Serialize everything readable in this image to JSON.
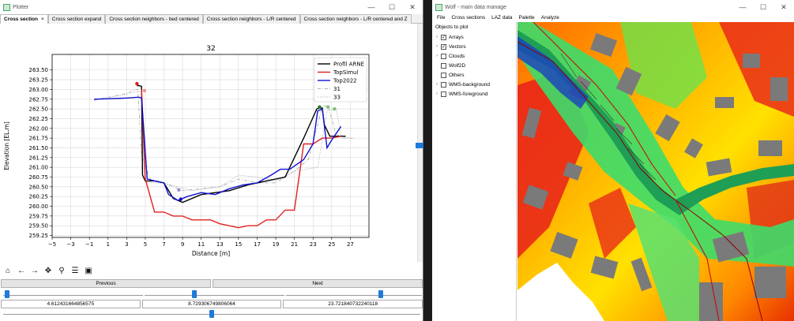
{
  "plotter": {
    "title": "Plotter",
    "tabs": [
      "Cross section",
      "Cross section expand",
      "Cross section neighbors - bed centered",
      "Cross section neighbors - L/R centered",
      "Cross section neighbors - L/R centered and Z"
    ],
    "tab_close": "×",
    "window_buttons": {
      "minimize": "—",
      "maximize": "☐",
      "close": "✕"
    },
    "toolbar_icons": [
      "home-icon",
      "back-arrow-icon",
      "forward-arrow-icon",
      "pan-icon",
      "zoom-icon",
      "configure-icon",
      "save-icon"
    ],
    "previous_label": "Previous",
    "next_label": "Next",
    "values": [
      "4.612431664856575",
      "8.729306749806064",
      "23.721840732240118"
    ],
    "sliders": [
      0.01,
      0.34,
      0.68
    ],
    "slider2": 0.5
  },
  "chart_data": {
    "type": "line",
    "title": "32",
    "xlabel": "Distance [m]",
    "ylabel": "Elevation [EL.m]",
    "xlim": [
      -5,
      29
    ],
    "ylim": [
      259.2,
      263.9
    ],
    "xticks": [
      -5,
      -3,
      -1,
      1,
      3,
      5,
      7,
      9,
      11,
      13,
      15,
      17,
      19,
      21,
      23,
      25,
      27
    ],
    "yticks": [
      259.25,
      259.5,
      259.75,
      260.0,
      260.25,
      260.5,
      260.75,
      261.0,
      261.25,
      261.5,
      261.75,
      262.0,
      262.25,
      262.5,
      262.75,
      263.0,
      263.25,
      263.5
    ],
    "grid": true,
    "legend": "top-right",
    "series": [
      {
        "name": "Profil ARNE",
        "color": "#000000",
        "x": [
          4.1,
          4.3,
          4.6,
          4.7,
          5.0,
          6.0,
          7.0,
          8.0,
          9.0,
          11.0,
          14.0,
          16.0,
          18.0,
          20.0,
          22.0,
          23.4,
          23.6,
          24.0,
          24.2,
          24.8,
          26.5
        ],
        "y": [
          263.1,
          263.1,
          263.08,
          260.8,
          260.65,
          260.65,
          260.6,
          260.2,
          260.1,
          260.3,
          260.4,
          260.55,
          260.65,
          260.75,
          261.75,
          262.5,
          262.52,
          262.52,
          262.1,
          261.8,
          261.8
        ]
      },
      {
        "name": "TopSimul",
        "color": "#e02020",
        "x": [
          4.6,
          5.0,
          6.0,
          7.0,
          8.0,
          9.0,
          10.0,
          11.0,
          12.0,
          13.0,
          14.0,
          15.0,
          16.0,
          17.0,
          18.0,
          19.0,
          20.0,
          21.0,
          22.0,
          23.0,
          24.0,
          25.0,
          26.0
        ],
        "y": [
          263.0,
          260.7,
          259.85,
          259.85,
          259.75,
          259.75,
          259.65,
          259.65,
          259.65,
          259.55,
          259.5,
          259.45,
          259.5,
          259.5,
          259.65,
          259.65,
          259.9,
          259.9,
          261.6,
          261.6,
          261.75,
          261.75,
          261.8
        ]
      },
      {
        "name": "Top2022",
        "color": "#1010d0",
        "x": [
          -0.5,
          3.0,
          4.2,
          4.3,
          4.6,
          5.2,
          6.0,
          7.0,
          7.5,
          8.5,
          9.5,
          11.0,
          12.5,
          14.0,
          15.5,
          17.0,
          18.5,
          19.5,
          20.5,
          22.0,
          23.0,
          23.5,
          24.0,
          24.5,
          25.0,
          26.0
        ],
        "y": [
          262.75,
          262.78,
          262.8,
          262.8,
          262.78,
          260.7,
          260.65,
          260.6,
          260.3,
          260.15,
          260.25,
          260.35,
          260.3,
          260.45,
          260.55,
          260.6,
          260.8,
          260.95,
          260.95,
          261.2,
          261.6,
          262.45,
          262.5,
          261.5,
          261.7,
          262.05
        ]
      }
    ],
    "markers": [
      {
        "x": 4.1,
        "y": 263.15,
        "color": "#e02020"
      },
      {
        "x": 4.9,
        "y": 262.97,
        "color": "#f09090"
      },
      {
        "x": 8.6,
        "y": 260.42,
        "color": "#9090e0"
      },
      {
        "x": 8.8,
        "y": 260.18,
        "color": "#1010d0"
      },
      {
        "x": 23.7,
        "y": 262.55,
        "color": "#208020"
      },
      {
        "x": 24.6,
        "y": 262.55,
        "color": "#80c080"
      },
      {
        "x": 25.3,
        "y": 262.5,
        "color": "#80c080"
      }
    ]
  },
  "neighbors": [
    {
      "name": "31",
      "color": "#999999",
      "x": [
        -0.5,
        3.0,
        4.0,
        4.2,
        4.6,
        5.5,
        7.0,
        9.0,
        11.0,
        13.0,
        15.0,
        17.0,
        19.0,
        21.0,
        22.5,
        24.0,
        24.6,
        25.4,
        26.0,
        27.5
      ],
      "y": [
        262.72,
        262.9,
        263.0,
        263.0,
        261.3,
        260.7,
        260.6,
        260.4,
        260.45,
        260.5,
        260.7,
        260.6,
        260.6,
        260.9,
        261.2,
        262.55,
        262.6,
        261.9,
        261.75,
        261.75
      ]
    },
    {
      "name": "33",
      "color": "#aaaaaa",
      "x": [
        -0.3,
        2.5,
        4.2,
        4.6,
        4.9,
        5.2,
        7.0,
        10.0,
        13.0,
        15.0,
        17.0,
        19.0,
        21.0,
        23.5,
        24.5,
        25.5,
        26.0,
        27.0
      ],
      "y": [
        262.75,
        262.85,
        262.95,
        262.95,
        260.75,
        260.6,
        260.6,
        260.4,
        260.5,
        260.8,
        260.75,
        260.65,
        260.9,
        261.0,
        262.45,
        262.5,
        261.8,
        261.75
      ]
    }
  ],
  "wolf": {
    "title": "Wolf - main data manage",
    "window_buttons": {
      "minimize": "—",
      "maximize": "☐",
      "close": "✕"
    },
    "menu": [
      "File",
      "Cross sections",
      "LAZ data",
      "Palette",
      "Analyze"
    ],
    "tree_title": "Objects to plot",
    "tree": [
      {
        "label": "Arrays",
        "checked": true,
        "expandable": true
      },
      {
        "label": "Vectors",
        "checked": true,
        "expandable": true
      },
      {
        "label": "Clouds",
        "checked": false,
        "expandable": true
      },
      {
        "label": "Wolf2D",
        "checked": false,
        "expandable": false
      },
      {
        "label": "Others",
        "checked": false,
        "expandable": false
      },
      {
        "label": "WMS-background",
        "checked": false,
        "expandable": true
      },
      {
        "label": "WMS-foreground",
        "checked": false,
        "expandable": true
      }
    ]
  }
}
